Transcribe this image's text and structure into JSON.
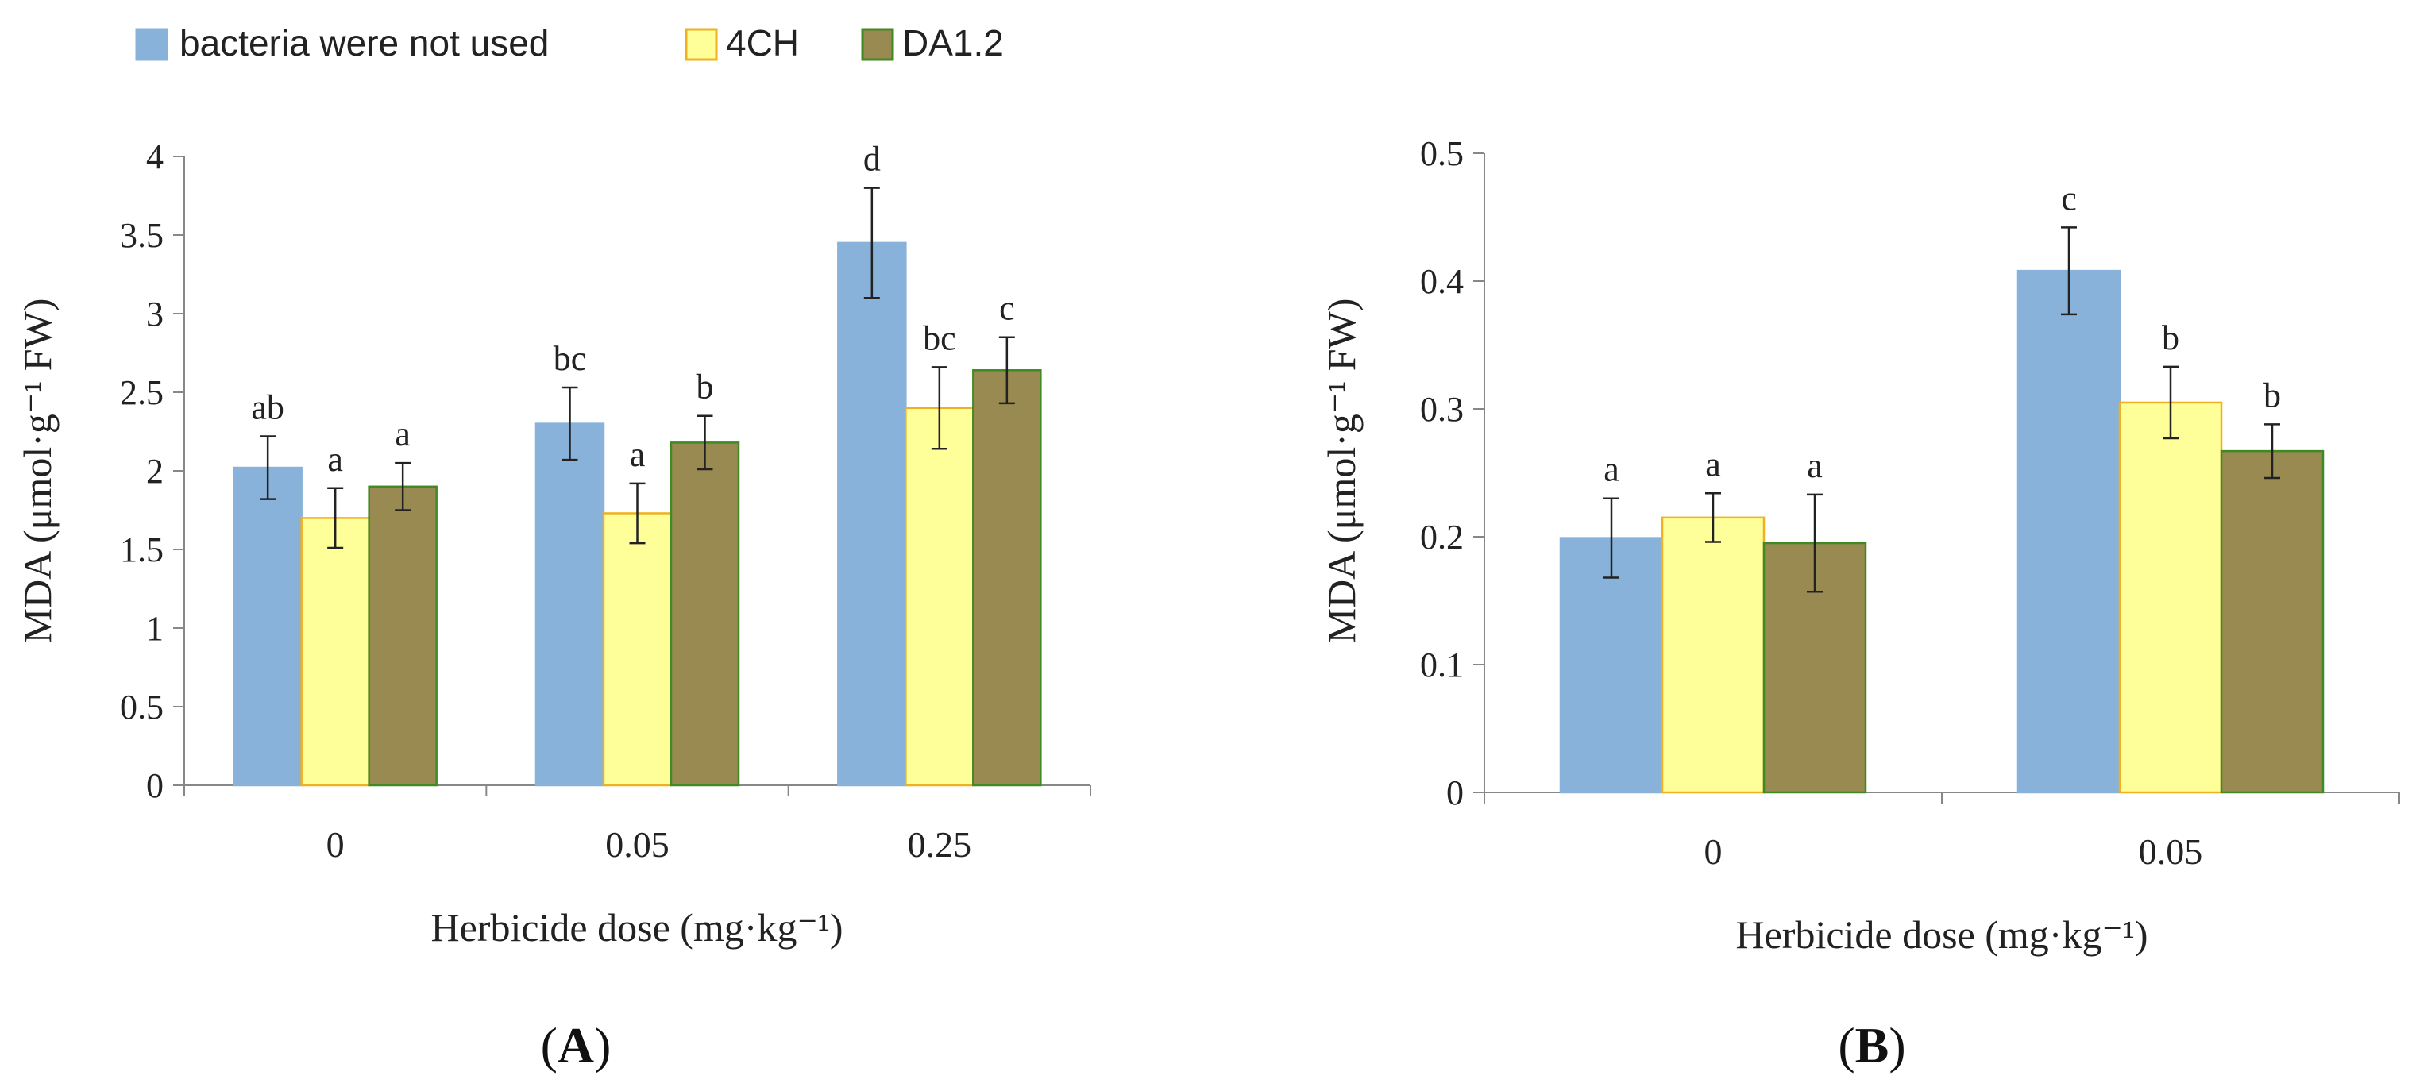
{
  "legend": [
    {
      "name": "bacteria were not used",
      "color": "#88b2d9",
      "stroke": "#88b2d9"
    },
    {
      "name": "4CH",
      "color": "#ffff99",
      "stroke": "#f0b020"
    },
    {
      "name": "DA1.2",
      "color": "#988a50",
      "stroke": "#3f8a22"
    }
  ],
  "chart_data": [
    {
      "type": "bar",
      "panel_label": "A",
      "categories": [
        "0",
        "0.05",
        "0.25"
      ],
      "xlabel": "Herbicide dose (mg·kg⁻¹)",
      "ylabel": "MDA (μmol·g⁻¹ FW)",
      "ylim": [
        0,
        4
      ],
      "yticks": [
        0,
        0.5,
        1,
        1.5,
        2,
        2.5,
        3,
        3.5,
        4
      ],
      "ytick_labels": [
        "0",
        "0.5",
        "1",
        "1.5",
        "2",
        "2.5",
        "3",
        "3.5",
        "4"
      ],
      "series": [
        {
          "name": "bacteria were not used",
          "values": [
            2.02,
            2.3,
            3.45
          ],
          "errors": [
            0.2,
            0.23,
            0.35
          ],
          "labels": [
            "ab",
            "bc",
            "d"
          ]
        },
        {
          "name": "4CH",
          "values": [
            1.7,
            1.73,
            2.4
          ],
          "errors": [
            0.19,
            0.19,
            0.26
          ],
          "labels": [
            "a",
            "a",
            "bc"
          ]
        },
        {
          "name": "DA1.2",
          "values": [
            1.9,
            2.18,
            2.64
          ],
          "errors": [
            0.15,
            0.17,
            0.21
          ],
          "labels": [
            "a",
            "b",
            "c"
          ]
        }
      ]
    },
    {
      "type": "bar",
      "panel_label": "B",
      "categories": [
        "0",
        "0.05"
      ],
      "xlabel": "Herbicide dose (mg·kg⁻¹)",
      "ylabel": "MDA (μmol·g⁻¹ FW)",
      "ylim": [
        0,
        0.5
      ],
      "yticks": [
        0,
        0.1,
        0.2,
        0.3,
        0.4,
        0.5
      ],
      "ytick_labels": [
        "0",
        "0.1",
        "0.2",
        "0.3",
        "0.4",
        "0.5"
      ],
      "series": [
        {
          "name": "bacteria were not used",
          "values": [
            0.199,
            0.408
          ],
          "errors": [
            0.031,
            0.034
          ],
          "labels": [
            "a",
            "c"
          ]
        },
        {
          "name": "4CH",
          "values": [
            0.215,
            0.305
          ],
          "errors": [
            0.019,
            0.028
          ],
          "labels": [
            "a",
            "b"
          ]
        },
        {
          "name": "DA1.2",
          "values": [
            0.195,
            0.267
          ],
          "errors": [
            0.038,
            0.021
          ],
          "labels": [
            "a",
            "b"
          ]
        }
      ]
    }
  ]
}
